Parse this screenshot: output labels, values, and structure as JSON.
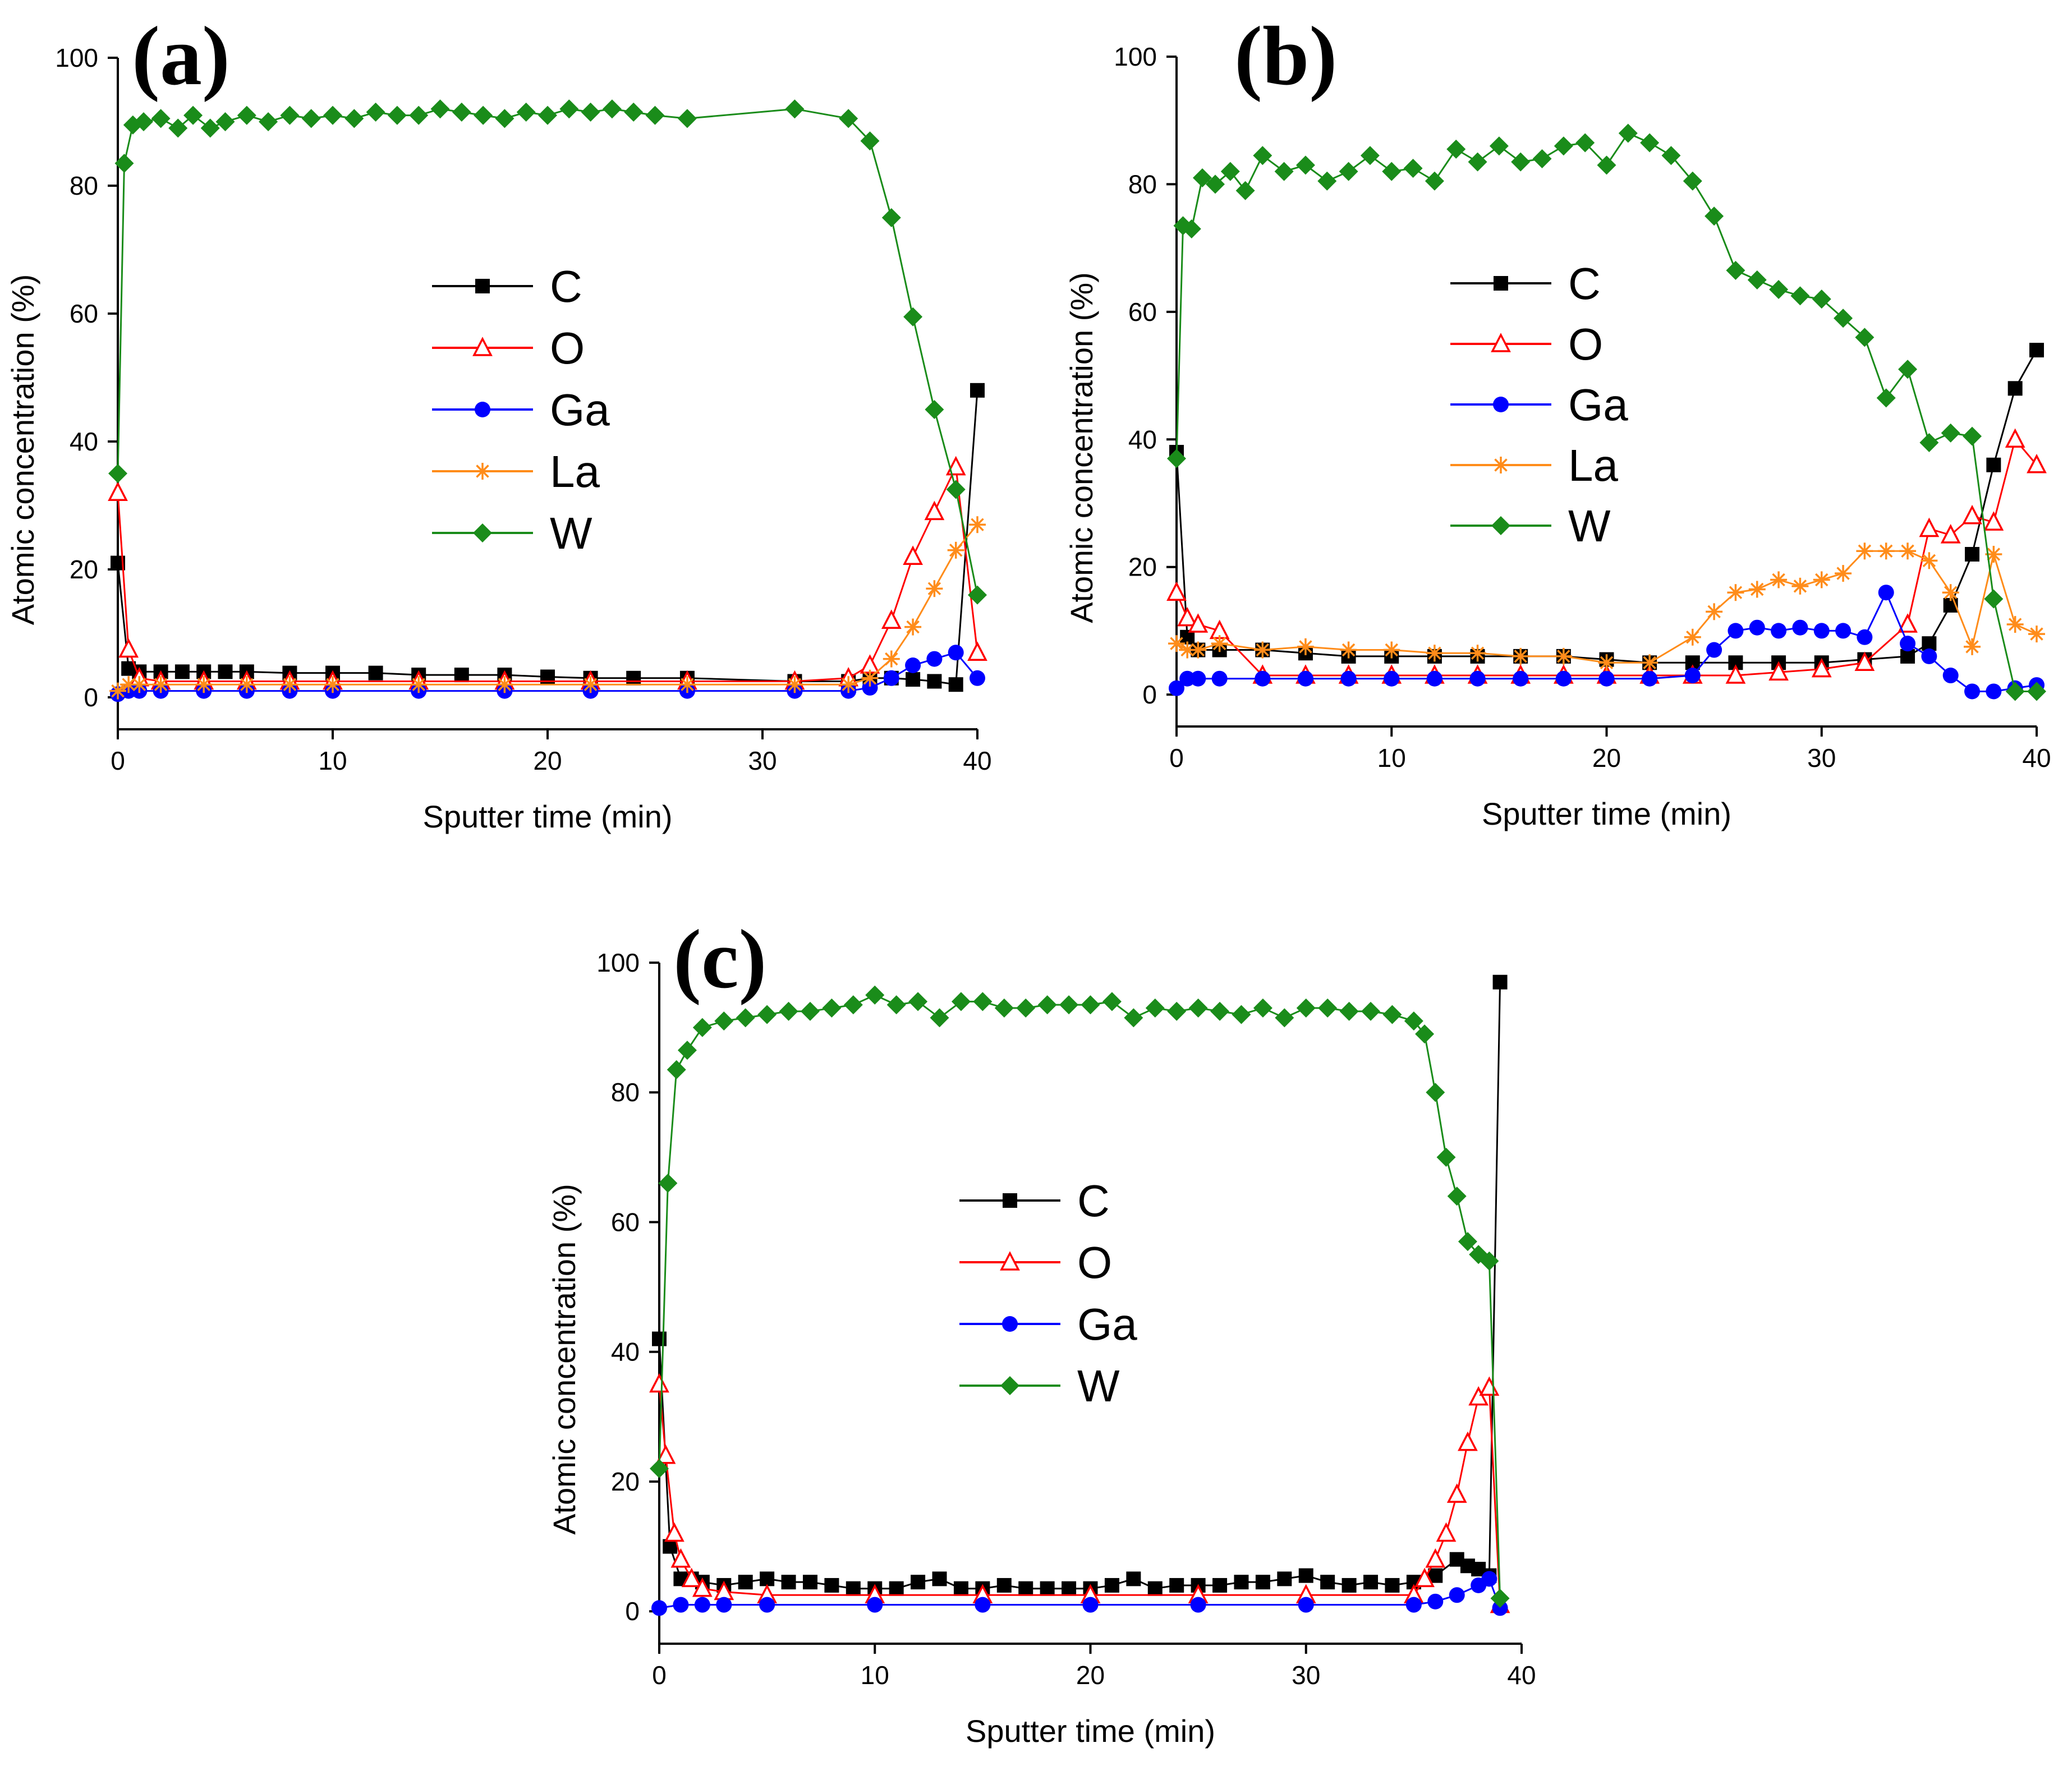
{
  "chart_data": [
    {
      "type": "line",
      "panel_label": "(a)",
      "xlabel": "Sputter time (min)",
      "ylabel": "Atomic concentration (%)",
      "xlim": [
        0,
        40
      ],
      "ylim": [
        -5,
        100
      ],
      "xticks": [
        0,
        10,
        20,
        30,
        40
      ],
      "yticks": [
        0,
        20,
        40,
        60,
        80,
        100
      ],
      "grid": false,
      "legend_position": "center",
      "series": [
        {
          "name": "C",
          "color": "#000000",
          "marker": "square",
          "x": [
            0,
            0.5,
            1,
            2,
            3,
            4,
            5,
            6,
            8,
            10,
            12,
            14,
            16,
            18,
            20,
            22,
            24,
            26.5,
            31.5,
            34,
            35,
            36,
            37,
            38,
            39,
            40
          ],
          "y": [
            21,
            4.5,
            4,
            4,
            4,
            4,
            4,
            4,
            3.8,
            3.8,
            3.8,
            3.5,
            3.5,
            3.5,
            3.2,
            3,
            3,
            3,
            2.5,
            2.5,
            3,
            3,
            2.8,
            2.5,
            2,
            48
          ]
        },
        {
          "name": "O",
          "color": "#ff0000",
          "marker": "triangle-open",
          "x": [
            0,
            0.5,
            1,
            2,
            4,
            6,
            8,
            10,
            14,
            18,
            22,
            26.5,
            31.5,
            34,
            35,
            36,
            37,
            38,
            39,
            40
          ],
          "y": [
            32,
            7.5,
            3,
            2.5,
            2.5,
            2.5,
            2.5,
            2.5,
            2.5,
            2.5,
            2.5,
            2.5,
            2.5,
            3,
            5,
            12,
            22,
            29,
            36,
            7
          ]
        },
        {
          "name": "Ga",
          "color": "#0000ff",
          "marker": "circle",
          "x": [
            0,
            0.5,
            1,
            2,
            4,
            6,
            8,
            10,
            14,
            18,
            22,
            26.5,
            31.5,
            34,
            35,
            36,
            37,
            38,
            39,
            40
          ],
          "y": [
            0.5,
            1,
            1,
            1,
            1,
            1,
            1,
            1,
            1,
            1,
            1,
            1,
            1,
            1,
            1.5,
            3,
            5,
            6,
            7,
            3
          ]
        },
        {
          "name": "La",
          "color": "#ff8c1a",
          "marker": "asterisk",
          "x": [
            0,
            0.5,
            1,
            2,
            4,
            6,
            8,
            10,
            14,
            18,
            22,
            26.5,
            31.5,
            34,
            35,
            36,
            37,
            38,
            39,
            40
          ],
          "y": [
            1,
            2,
            2,
            2,
            2,
            2,
            2,
            2,
            2,
            2,
            2,
            2,
            2,
            2,
            3,
            6,
            11,
            17,
            23,
            27
          ]
        },
        {
          "name": "W",
          "color": "#1a8c1a",
          "marker": "diamond",
          "x": [
            0,
            0.3,
            0.7,
            1.2,
            2,
            2.8,
            3.5,
            4.3,
            5,
            6,
            7,
            8,
            9,
            10,
            11,
            12,
            13,
            14,
            15,
            16,
            17,
            18,
            19,
            20,
            21,
            22,
            23,
            24,
            25,
            26.5,
            31.5,
            34,
            35,
            36,
            37,
            38,
            39,
            40
          ],
          "y": [
            35,
            83.5,
            89.5,
            90,
            90.5,
            89,
            91,
            89,
            90,
            91,
            90,
            91,
            90.5,
            91,
            90.5,
            91.5,
            91,
            91,
            92,
            91.5,
            91,
            90.5,
            91.5,
            91,
            92,
            91.5,
            92,
            91.5,
            91,
            90.5,
            92,
            90.5,
            87,
            75,
            59.5,
            45,
            32.5,
            16
          ]
        }
      ]
    },
    {
      "type": "line",
      "panel_label": "(b)",
      "xlabel": "Sputter time (min)",
      "ylabel": "Atomic concentration (%)",
      "xlim": [
        0,
        40
      ],
      "ylim": [
        -5,
        100
      ],
      "xticks": [
        0,
        10,
        20,
        30,
        40
      ],
      "yticks": [
        0,
        20,
        40,
        60,
        80,
        100
      ],
      "grid": false,
      "legend_position": "center",
      "series": [
        {
          "name": "C",
          "color": "#000000",
          "marker": "square",
          "x": [
            0,
            0.5,
            1,
            2,
            4,
            6,
            8,
            10,
            12,
            14,
            16,
            18,
            20,
            22,
            24,
            26,
            28,
            30,
            32,
            34,
            35,
            36,
            37,
            38,
            39,
            40
          ],
          "y": [
            38,
            9,
            7,
            7,
            7,
            6.5,
            6,
            6,
            6,
            6,
            6,
            6,
            5.5,
            5,
            5,
            5,
            5,
            5,
            5.5,
            6,
            8,
            14,
            22,
            36,
            48,
            54
          ]
        },
        {
          "name": "O",
          "color": "#ff0000",
          "marker": "triangle-open",
          "x": [
            0,
            0.5,
            1,
            2,
            4,
            6,
            8,
            10,
            12,
            14,
            16,
            18,
            20,
            22,
            24,
            26,
            28,
            30,
            32,
            34,
            35,
            36,
            37,
            38,
            39,
            40
          ],
          "y": [
            16,
            12,
            11,
            10,
            3,
            3,
            3,
            3,
            3,
            3,
            3,
            3,
            3,
            3,
            3,
            3,
            3.5,
            4,
            5,
            11,
            26,
            25,
            28,
            27,
            40,
            36
          ]
        },
        {
          "name": "Ga",
          "color": "#0000ff",
          "marker": "circle",
          "x": [
            0,
            0.5,
            1,
            2,
            4,
            6,
            8,
            10,
            12,
            14,
            16,
            18,
            20,
            22,
            24,
            25,
            26,
            27,
            28,
            29,
            30,
            31,
            32,
            33,
            34,
            35,
            36,
            37,
            38,
            39,
            40
          ],
          "y": [
            1,
            2.5,
            2.5,
            2.5,
            2.5,
            2.5,
            2.5,
            2.5,
            2.5,
            2.5,
            2.5,
            2.5,
            2.5,
            2.5,
            3,
            7,
            10,
            10.5,
            10,
            10.5,
            10,
            10,
            9,
            16,
            8,
            6,
            3,
            0.5,
            0.5,
            1,
            1.5
          ]
        },
        {
          "name": "La",
          "color": "#ff8c1a",
          "marker": "asterisk",
          "x": [
            0,
            0.5,
            1,
            2,
            4,
            6,
            8,
            10,
            12,
            14,
            16,
            18,
            20,
            22,
            24,
            25,
            26,
            27,
            28,
            29,
            30,
            31,
            32,
            33,
            34,
            35,
            36,
            37,
            38,
            39,
            40
          ],
          "y": [
            8,
            7,
            7,
            8,
            7,
            7.5,
            7,
            7,
            6.5,
            6.5,
            6,
            6,
            5,
            5,
            9,
            13,
            16,
            16.5,
            18,
            17,
            18,
            19,
            22.5,
            22.5,
            22.5,
            21,
            16,
            7.5,
            22,
            11,
            9.5
          ]
        },
        {
          "name": "W",
          "color": "#1a8c1a",
          "marker": "diamond",
          "x": [
            0,
            0.3,
            0.7,
            1.2,
            1.8,
            2.5,
            3.2,
            4,
            5,
            6,
            7,
            8,
            9,
            10,
            11,
            12,
            13,
            14,
            15,
            16,
            17,
            18,
            19,
            20,
            21,
            22,
            23,
            24,
            25,
            26,
            27,
            28,
            29,
            30,
            31,
            32,
            33,
            34,
            35,
            36,
            37,
            38,
            39,
            40
          ],
          "y": [
            37,
            73.5,
            73,
            81,
            80,
            82,
            79,
            84.5,
            82,
            83,
            80.5,
            82,
            84.5,
            82,
            82.5,
            80.5,
            85.5,
            83.5,
            86,
            83.5,
            84,
            86,
            86.5,
            83,
            88,
            86.5,
            84.5,
            80.5,
            75,
            66.5,
            65,
            63.5,
            62.5,
            62,
            59,
            56,
            46.5,
            51,
            39.5,
            41,
            40.5,
            15,
            0.5,
            0.5
          ]
        }
      ]
    },
    {
      "type": "line",
      "panel_label": "(c)",
      "xlabel": "Sputter time (min)",
      "ylabel": "Atomic concentration (%)",
      "xlim": [
        0,
        40
      ],
      "ylim": [
        -5,
        100
      ],
      "xticks": [
        0,
        10,
        20,
        30,
        40
      ],
      "yticks": [
        0,
        20,
        40,
        60,
        80,
        100
      ],
      "grid": false,
      "legend_position": "center",
      "series": [
        {
          "name": "C",
          "color": "#000000",
          "marker": "square",
          "x": [
            0,
            0.5,
            1,
            1.5,
            2,
            3,
            4,
            5,
            6,
            7,
            8,
            9,
            10,
            11,
            12,
            13,
            14,
            15,
            16,
            17,
            18,
            19,
            20,
            21,
            22,
            23,
            24,
            25,
            26,
            27,
            28,
            29,
            30,
            31,
            32,
            33,
            34,
            35,
            36,
            37,
            37.5,
            38,
            38.5,
            39
          ],
          "y": [
            42,
            10,
            5,
            5,
            4.5,
            4,
            4.5,
            5,
            4.5,
            4.5,
            4,
            3.5,
            3.5,
            3.5,
            4.5,
            5,
            3.5,
            3.5,
            4,
            3.5,
            3.5,
            3.5,
            3.5,
            4,
            5,
            3.5,
            4,
            4,
            4,
            4.5,
            4.5,
            5,
            5.5,
            4.5,
            4,
            4.5,
            4,
            4.5,
            5.5,
            8,
            7,
            6.5,
            5.5,
            97
          ]
        },
        {
          "name": "O",
          "color": "#ff0000",
          "marker": "triangle-open",
          "x": [
            0,
            0.3,
            0.7,
            1,
            1.5,
            2,
            3,
            5,
            10,
            15,
            20,
            25,
            30,
            35,
            35.5,
            36,
            36.5,
            37,
            37.5,
            38,
            38.5,
            39
          ],
          "y": [
            35,
            24,
            12,
            8,
            5,
            3.5,
            3,
            2.5,
            2.5,
            2.5,
            2.5,
            2.5,
            2.5,
            2.5,
            5,
            8,
            12,
            18,
            26,
            33,
            34.5,
            1
          ]
        },
        {
          "name": "Ga",
          "color": "#0000ff",
          "marker": "circle",
          "x": [
            0,
            1,
            2,
            3,
            5,
            10,
            15,
            20,
            25,
            30,
            35,
            36,
            37,
            38,
            38.5,
            39
          ],
          "y": [
            0.5,
            1,
            1,
            1,
            1,
            1,
            1,
            1,
            1,
            1,
            1,
            1.5,
            2.5,
            4,
            5,
            0.5
          ]
        },
        {
          "name": "W",
          "color": "#1a8c1a",
          "marker": "diamond",
          "x": [
            0,
            0.4,
            0.8,
            1.3,
            2,
            3,
            4,
            5,
            6,
            7,
            8,
            9,
            10,
            11,
            12,
            13,
            14,
            15,
            16,
            17,
            18,
            19,
            20,
            21,
            22,
            23,
            24,
            25,
            26,
            27,
            28,
            29,
            30,
            31,
            32,
            33,
            34,
            35,
            35.5,
            36,
            36.5,
            37,
            37.5,
            38,
            38.5,
            39
          ],
          "y": [
            22,
            66,
            83.5,
            86.5,
            90,
            91,
            91.5,
            92,
            92.5,
            92.5,
            93,
            93.5,
            95,
            93.5,
            94,
            91.5,
            94,
            94,
            93,
            93,
            93.5,
            93.5,
            93.5,
            94,
            91.5,
            93,
            92.5,
            93,
            92.5,
            92,
            93,
            91.5,
            93,
            93,
            92.5,
            92.5,
            92,
            91,
            89,
            80,
            70,
            64,
            57,
            55,
            54,
            2
          ]
        }
      ]
    }
  ]
}
